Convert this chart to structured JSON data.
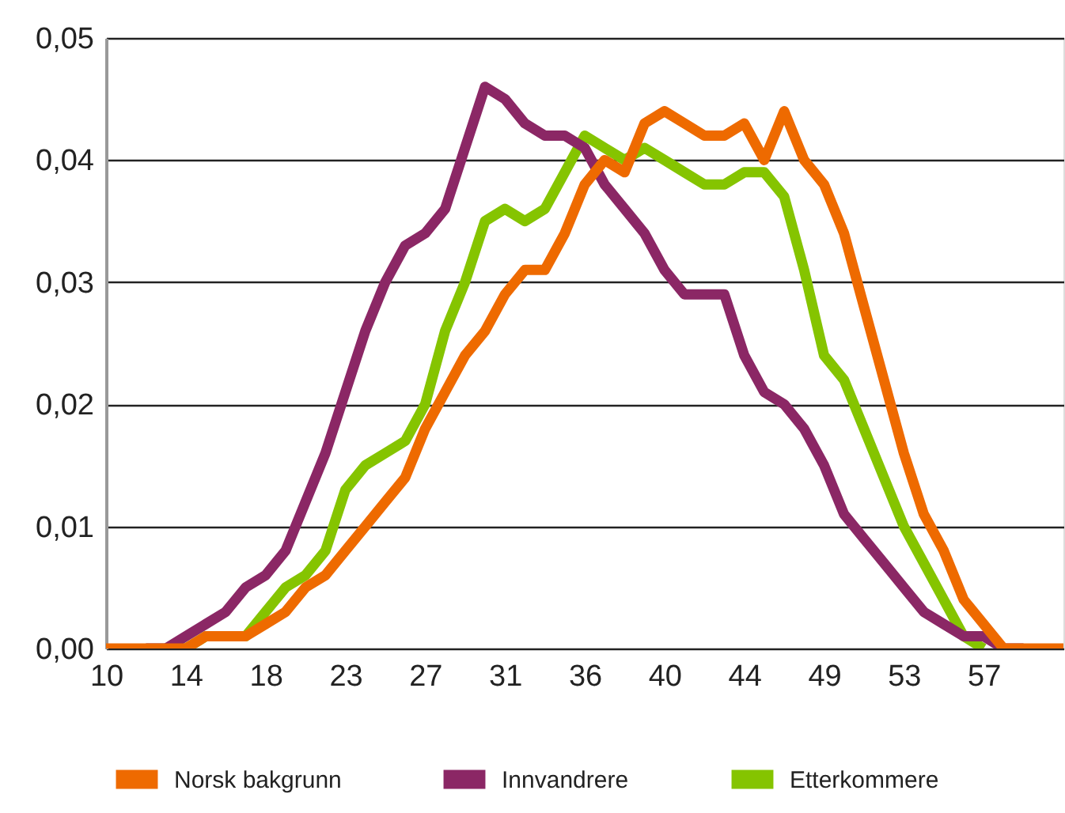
{
  "chart_data": {
    "type": "line",
    "categories": [
      "10",
      null,
      null,
      null,
      "14",
      null,
      null,
      null,
      "18",
      null,
      null,
      null,
      "23",
      null,
      null,
      null,
      "27",
      null,
      null,
      null,
      "31",
      null,
      null,
      null,
      "36",
      null,
      null,
      null,
      "40",
      null,
      null,
      null,
      "44",
      null,
      null,
      null,
      "49",
      null,
      null,
      null,
      "53",
      null,
      null,
      null,
      "57",
      null,
      null,
      null,
      null
    ],
    "series": [
      {
        "name": "Norsk bakgrunn",
        "color": "#ee6a00",
        "values": [
          0,
          0,
          0,
          0,
          0,
          0.001,
          0.001,
          0.001,
          0.002,
          0.003,
          0.005,
          0.006,
          0.008,
          0.01,
          0.012,
          0.014,
          0.018,
          0.021,
          0.024,
          0.026,
          0.029,
          0.031,
          0.031,
          0.034,
          0.038,
          0.04,
          0.039,
          0.043,
          0.044,
          0.043,
          0.042,
          0.042,
          0.043,
          0.04,
          0.044,
          0.04,
          0.038,
          0.034,
          0.028,
          0.022,
          0.016,
          0.011,
          0.008,
          0.004,
          0.002,
          0,
          0,
          0,
          0
        ]
      },
      {
        "name": "Innvandrere",
        "color": "#8b2765",
        "values": [
          null,
          null,
          0,
          0,
          0.001,
          0.002,
          0.003,
          0.005,
          0.006,
          0.008,
          0.012,
          0.016,
          0.021,
          0.026,
          0.03,
          0.033,
          0.034,
          0.036,
          0.041,
          0.046,
          0.045,
          0.043,
          0.042,
          0.042,
          0.041,
          0.038,
          0.036,
          0.034,
          0.031,
          0.029,
          0.029,
          0.029,
          0.024,
          0.021,
          0.02,
          0.018,
          0.015,
          0.011,
          0.009,
          0.007,
          0.005,
          0.003,
          0.002,
          0.001,
          0.001,
          0,
          0,
          null,
          null
        ]
      },
      {
        "name": "Etterkommere",
        "color": "#85c400",
        "values": [
          null,
          null,
          null,
          0,
          0,
          0.001,
          0.001,
          0.001,
          0.003,
          0.005,
          0.006,
          0.008,
          0.013,
          0.015,
          0.016,
          0.017,
          0.02,
          0.026,
          0.03,
          0.035,
          0.036,
          0.035,
          0.036,
          0.039,
          0.042,
          0.041,
          0.04,
          0.041,
          0.04,
          0.039,
          0.038,
          0.038,
          0.039,
          0.039,
          0.037,
          0.031,
          0.024,
          0.022,
          0.018,
          0.014,
          0.01,
          0.007,
          0.004,
          0.001,
          0,
          null,
          null,
          null,
          null
        ]
      }
    ],
    "ylim": [
      0,
      0.05
    ],
    "yticks": [
      {
        "value": 0,
        "label": "0,00"
      },
      {
        "value": 0.01,
        "label": "0,01"
      },
      {
        "value": 0.02,
        "label": "0,02"
      },
      {
        "value": 0.03,
        "label": "0,03"
      },
      {
        "value": 0.04,
        "label": "0,04"
      },
      {
        "value": 0.05,
        "label": "0,05"
      }
    ],
    "grid": "y",
    "legend": "bottom",
    "line_style": "solid"
  }
}
